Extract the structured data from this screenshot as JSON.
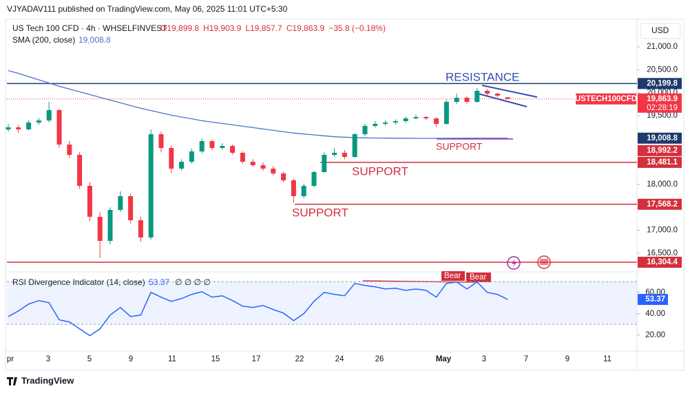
{
  "chart_data": {
    "type": "candlestick",
    "publisher": "VJYADAV111 published on TradingView.com, May 06, 2025 11:01 UTC+5:30",
    "symbol": "US Tech 100 CFD · 4h · WHSELFINVEST",
    "ohlc_text": [
      "O19,899.8",
      "H19,903.9",
      "L19,857.7",
      "C19,863.9",
      "−35.8 (−0.18%)"
    ],
    "sma_title": "SMA (200, close)",
    "sma_value_label": "19,008.8",
    "currency": "USD",
    "footer": "TradingView",
    "annotations": [
      "RESISTANCE",
      "SUPPORT",
      "SUPPORT",
      "SUPPORT"
    ],
    "symbol_tag": "USTECH100CFD",
    "last_price_label": "19,863.9",
    "countdown": "02:28:19",
    "up_color": "#089981",
    "down_color": "#f23645",
    "xticks": [
      "pr",
      "3",
      "5",
      "9",
      "11",
      "15",
      "17",
      "22",
      "24",
      "26",
      "May",
      "3",
      "7",
      "9",
      "11"
    ],
    "ylim": [
      16170,
      21570
    ],
    "yticks": [
      {
        "value": 16500,
        "label": "16,500.0"
      },
      {
        "value": 17000,
        "label": "17,000.0"
      },
      {
        "value": 18000,
        "label": "18,000.0"
      },
      {
        "value": 19500,
        "label": "19,500.0"
      },
      {
        "value": 20000,
        "label": "20,000.0"
      },
      {
        "value": 20500,
        "label": "20,500.0"
      },
      {
        "value": 21000,
        "label": "21,000.0"
      }
    ],
    "levels": [
      {
        "value": 20199.8,
        "label": "20,199.8",
        "color": "#1e3a6e"
      },
      {
        "value": 19008.8,
        "label": "19,008.8",
        "color": "#1e3a6e"
      },
      {
        "value": 18992.2,
        "label": "18,992.2",
        "color": "#d32f3c"
      },
      {
        "value": 18481.1,
        "label": "18,481.1",
        "color": "#d32f3c"
      },
      {
        "value": 17568.2,
        "label": "17,568.2",
        "color": "#d32f3c"
      },
      {
        "value": 16304.4,
        "label": "16,304.4",
        "color": "#d32f3c"
      }
    ],
    "candles": [
      [
        19200,
        19320,
        19150,
        19245
      ],
      [
        19245,
        19300,
        19120,
        19200
      ],
      [
        19200,
        19400,
        19180,
        19350
      ],
      [
        19350,
        19450,
        19300,
        19395
      ],
      [
        19395,
        19800,
        19350,
        19620
      ],
      [
        19620,
        19650,
        18800,
        18870
      ],
      [
        18870,
        18950,
        18580,
        18645
      ],
      [
        18645,
        18700,
        17900,
        17970
      ],
      [
        17970,
        18050,
        17200,
        17295
      ],
      [
        17295,
        17400,
        16400,
        16770
      ],
      [
        16770,
        17500,
        16700,
        17445
      ],
      [
        17445,
        17850,
        17400,
        17745
      ],
      [
        17745,
        17800,
        17150,
        17220
      ],
      [
        17220,
        17300,
        16750,
        16845
      ],
      [
        16845,
        19200,
        16800,
        19095
      ],
      [
        19095,
        19150,
        18700,
        18795
      ],
      [
        18795,
        18850,
        18250,
        18345
      ],
      [
        18345,
        18550,
        18300,
        18495
      ],
      [
        18495,
        18780,
        18450,
        18720
      ],
      [
        18720,
        19000,
        18680,
        18945
      ],
      [
        18945,
        18980,
        18750,
        18795
      ],
      [
        18795,
        18900,
        18760,
        18840
      ],
      [
        18840,
        18870,
        18650,
        18690
      ],
      [
        18690,
        18720,
        18450,
        18495
      ],
      [
        18495,
        18550,
        18380,
        18420
      ],
      [
        18420,
        18480,
        18300,
        18345
      ],
      [
        18345,
        18400,
        18200,
        18240
      ],
      [
        18240,
        18280,
        18050,
        18090
      ],
      [
        18090,
        18120,
        17600,
        17745
      ],
      [
        17745,
        18020,
        17700,
        17970
      ],
      [
        17970,
        18300,
        17940,
        18270
      ],
      [
        18270,
        18700,
        18250,
        18645
      ],
      [
        18645,
        18800,
        18600,
        18690
      ],
      [
        18690,
        18750,
        18550,
        18600
      ],
      [
        18600,
        19120,
        18580,
        19095
      ],
      [
        19095,
        19320,
        19050,
        19275
      ],
      [
        19275,
        19380,
        19240,
        19320
      ],
      [
        19320,
        19400,
        19280,
        19350
      ],
      [
        19350,
        19420,
        19300,
        19380
      ],
      [
        19380,
        19480,
        19340,
        19440
      ],
      [
        19440,
        19520,
        19420,
        19470
      ],
      [
        19470,
        19500,
        19400,
        19440
      ],
      [
        19440,
        19460,
        19250,
        19320
      ],
      [
        19320,
        19850,
        19300,
        19800
      ],
      [
        19800,
        19980,
        19760,
        19890
      ],
      [
        19890,
        19920,
        19760,
        19800
      ],
      [
        19800,
        20100,
        19780,
        20040
      ],
      [
        20040,
        20080,
        19940,
        19980
      ],
      [
        19980,
        20000,
        19900,
        19935
      ],
      [
        19899.8,
        19903.9,
        19857.7,
        19863.9
      ]
    ],
    "sma": {
      "name": "SMA (200, close)",
      "color": "#4a72c8",
      "values": [
        20480,
        20420,
        20350,
        20280,
        20210,
        20140,
        20080,
        20020,
        19960,
        19900,
        19840,
        19780,
        19720,
        19660,
        19610,
        19560,
        19510,
        19470,
        19430,
        19390,
        19360,
        19330,
        19300,
        19270,
        19240,
        19210,
        19180,
        19150,
        19120,
        19100,
        19080,
        19060,
        19040,
        19030,
        19020,
        19015,
        19012,
        19010,
        19008,
        19006,
        19005,
        19005,
        19005,
        19006,
        19007,
        19008,
        19008,
        19008.5,
        19008.7,
        19008.8
      ]
    },
    "rsi": {
      "title": "RSI Divergence Indicator (14, close)",
      "value_label": "53.37",
      "flags": "∅ ∅ ∅ ∅",
      "color": "#2962ff",
      "bear_labels": [
        "Bear",
        "Bear"
      ],
      "ylim": [
        5,
        77.3
      ],
      "yticks": [
        {
          "value": 20,
          "label": "20.00"
        },
        {
          "value": 40,
          "label": "40.00"
        },
        {
          "value": 60,
          "label": "60.00"
        }
      ],
      "band": [
        30,
        70
      ],
      "values": [
        37.4,
        42.6,
        49,
        52.3,
        50.3,
        34.2,
        32.3,
        25.8,
        19.4,
        25.8,
        38.7,
        45.8,
        37.4,
        38.7,
        60,
        55.5,
        51.6,
        54.2,
        58.1,
        60.6,
        55.5,
        56.8,
        52.3,
        47.1,
        45.8,
        47.7,
        43.9,
        40.6,
        33.5,
        40,
        51.6,
        60,
        58.1,
        56.8,
        68.4,
        66.5,
        65.2,
        63.2,
        63.9,
        61.9,
        63.2,
        61.9,
        55.5,
        68.4,
        69.7,
        63.2,
        69.7,
        60,
        58.1,
        53.37
      ]
    }
  }
}
